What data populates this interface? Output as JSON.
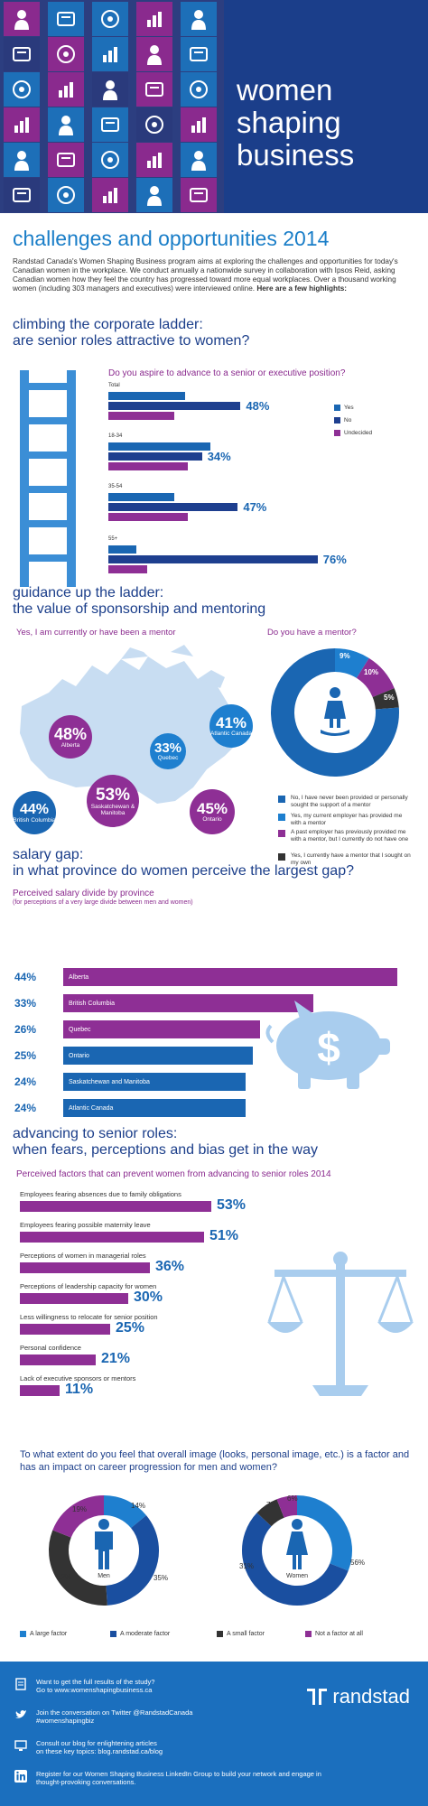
{
  "header": {
    "title_lines": [
      "women",
      "shaping",
      "business"
    ],
    "icons": [
      "ladder-icon",
      "handshake-icon",
      "helmet-icon",
      "briefcase-icon",
      "woman-icon",
      "woman-icon",
      "gear-network-icon",
      "computer-icon",
      "certificate-icon",
      "woman-icon",
      "gears-icon",
      "person-icon",
      "woman-icon",
      "map-pin-icon",
      "chat-icon",
      "clock-icon",
      "woman-icon",
      "bar-chart-icon",
      "woman-icon",
      "chat-icon",
      "oil-pump-icon",
      "phone-icon",
      "woman-icon",
      "document-icon",
      "woman-icon"
    ]
  },
  "intro": {
    "heading": "challenges and opportunities 2014",
    "text": "Randstad Canada's Women Shaping Business program aims at exploring the challenges and opportunities for today's Canadian women in the workplace. We conduct annually a nationwide survey in collaboration with Ipsos Reid, asking Canadian women how they feel the country has progressed toward more equal workplaces. Over a thousand working women (including 303 managers and executives) were interviewed online.",
    "highlight": "Here are a few highlights:"
  },
  "ladder_section": {
    "title1": "climbing the corporate ladder:",
    "title2": "are senior roles attractive to women?",
    "question": "Do you aspire to advance to a senior or executive position?",
    "legend": [
      "Yes",
      "No",
      "Undecided"
    ],
    "colors": {
      "yes": "#1a66b2",
      "no": "#1e3f8f",
      "undecided": "#8e2f95"
    }
  },
  "chart_data": [
    {
      "type": "bar",
      "title": "Do you aspire to advance to a senior or executive position?",
      "categories": [
        "Total",
        "18-34",
        "35-54",
        "55+"
      ],
      "series": [
        {
          "name": "Yes",
          "values": [
            28,
            37,
            24,
            10
          ]
        },
        {
          "name": "No",
          "values": [
            48,
            34,
            47,
            76
          ]
        },
        {
          "name": "Undecided",
          "values": [
            24,
            29,
            29,
            14
          ]
        }
      ],
      "labels": [
        "48%",
        "34%",
        "47%",
        "76%"
      ]
    },
    {
      "type": "pie",
      "title": "Do you have a mentor?",
      "categories": [
        "No, I have never been provided or personally sought the support of a mentor",
        "Yes, my current employer has provided me with a mentor",
        "A past employer has previously provided me with a mentor, but I currently do not have one",
        "Yes, I currently have a mentor that I sought on my own"
      ],
      "values": [
        77,
        9,
        10,
        5
      ],
      "labels": [
        "77%",
        "9%",
        "10%",
        "5%"
      ]
    },
    {
      "type": "bar",
      "title": "Perceived salary divide by province",
      "categories": [
        "Alberta",
        "British Columbia",
        "Quebec",
        "Ontario",
        "Saskatchewan and Manitoba",
        "Atlantic Canada"
      ],
      "values": [
        44,
        33,
        26,
        25,
        24,
        24
      ],
      "labels": [
        "44%",
        "33%",
        "26%",
        "25%",
        "24%",
        "24%"
      ]
    },
    {
      "type": "bar",
      "title": "Perceived factors that can prevent women from advancing to senior roles 2014",
      "categories": [
        "Employees fearing absences due to family obligations",
        "Employees fearing possible maternity leave",
        "Perceptions of women in managerial roles",
        "Perceptions of leadership capacity for women",
        "Less willingness to relocate for senior position",
        "Personal confidence",
        "Lack of executive sponsors or mentors"
      ],
      "values": [
        53,
        51,
        36,
        30,
        25,
        21,
        11
      ],
      "labels": [
        "53%",
        "51%",
        "36%",
        "30%",
        "25%",
        "21%",
        "11%"
      ]
    },
    {
      "type": "pie",
      "title": "Men",
      "categories": [
        "A large factor",
        "A moderate factor",
        "A small factor",
        "Not a factor at all"
      ],
      "values": [
        14,
        35,
        32,
        19
      ],
      "labels": [
        "14%",
        "35%",
        "32%",
        "19%"
      ]
    },
    {
      "type": "pie",
      "title": "Women",
      "categories": [
        "A large factor",
        "A moderate factor",
        "A small factor",
        "Not a factor at all"
      ],
      "values": [
        31,
        56,
        7,
        6
      ],
      "labels": [
        "31%",
        "56%",
        "7%",
        "6%"
      ]
    }
  ],
  "mentor_section": {
    "title1": "guidance up the ladder:",
    "title2": "the value of sponsorship and mentoring",
    "map_question": "Yes, I am currently or have been a mentor",
    "donut_question": "Do you have a mentor?",
    "provinces": [
      {
        "pct": "48",
        "name": "Alberta"
      },
      {
        "pct": "33",
        "name": "Quebec"
      },
      {
        "pct": "41",
        "name": "Atlantic Canada"
      },
      {
        "pct": "44",
        "name": "British Columbia"
      },
      {
        "pct": "53",
        "name": "Saskatchewan & Manitoba"
      },
      {
        "pct": "45",
        "name": "Ontario"
      }
    ],
    "legend": [
      "No, I have never been provided or personally sought the support of a mentor",
      "Yes, my current employer has provided me with a mentor",
      "A past employer has previously provided me with a mentor, but I currently do not have one",
      "Yes, I currently have a mentor that I sought on my own"
    ],
    "legend_colors": [
      "#1a66b2",
      "#1e7fcf",
      "#8e2f95",
      "#333333"
    ],
    "donut_labels": [
      "77%",
      "9%",
      "10%",
      "5%"
    ]
  },
  "salary_section": {
    "title1": "salary gap:",
    "title2": "in what province do women perceive the largest gap?",
    "subtitle": "Perceived salary divide by province",
    "note": "(for perceptions of a very large divide between men and women)",
    "rows": [
      {
        "pct": "44%",
        "name": "Alberta"
      },
      {
        "pct": "33%",
        "name": "British Columbia"
      },
      {
        "pct": "26%",
        "name": "Quebec"
      },
      {
        "pct": "25%",
        "name": "Ontario"
      },
      {
        "pct": "24%",
        "name": "Saskatchewan and Manitoba"
      },
      {
        "pct": "24%",
        "name": "Atlantic Canada"
      }
    ],
    "piggy_symbol": "$"
  },
  "factors_section": {
    "title1": "advancing to senior roles:",
    "title2": "when fears, perceptions and bias get in the way",
    "subtitle": "Perceived factors that can prevent women from advancing to senior roles 2014",
    "rows": [
      {
        "label": "Employees fearing absences due to family obligations",
        "pct": "53%"
      },
      {
        "label": "Employees fearing possible maternity leave",
        "pct": "51%"
      },
      {
        "label": "Perceptions of women in managerial roles",
        "pct": "36%"
      },
      {
        "label": "Perceptions of leadership capacity for women",
        "pct": "30%"
      },
      {
        "label": "Less willingness to relocate for senior position",
        "pct": "25%"
      },
      {
        "label": "Personal confidence",
        "pct": "21%"
      },
      {
        "label": "Lack of executive sponsors or mentors",
        "pct": "11%"
      }
    ]
  },
  "image_section": {
    "question": "To what extent do you feel that overall image (looks, personal image, etc.) is a factor and has an impact on career progression for men and women?",
    "men_label": "Men",
    "women_label": "Women",
    "men_labels": [
      "14%",
      "35%",
      "32%",
      "19%"
    ],
    "women_labels": [
      "31%",
      "56%",
      "7%",
      "6%"
    ],
    "legend": [
      "A large factor",
      "A moderate factor",
      "A small factor",
      "Not a factor at all"
    ],
    "colors": [
      "#1e7fcf",
      "#1a4fa0",
      "#333333",
      "#8e2f95"
    ]
  },
  "footer": {
    "row1": [
      "Want to get the full results of the study?",
      "Go to www.womenshapingbusiness.ca"
    ],
    "row2": [
      "Join the conversation on Twitter @RandstadCanada",
      "#womenshapingbiz"
    ],
    "row3": [
      "Consult our blog for enlightening articles",
      "on these key topics: blog.randstad.ca/blog"
    ],
    "row4": [
      "Register for our Women Shaping Business LinkedIn Group to build your network and engage in",
      "thought-provoking conversations."
    ],
    "brand": "randstad"
  }
}
